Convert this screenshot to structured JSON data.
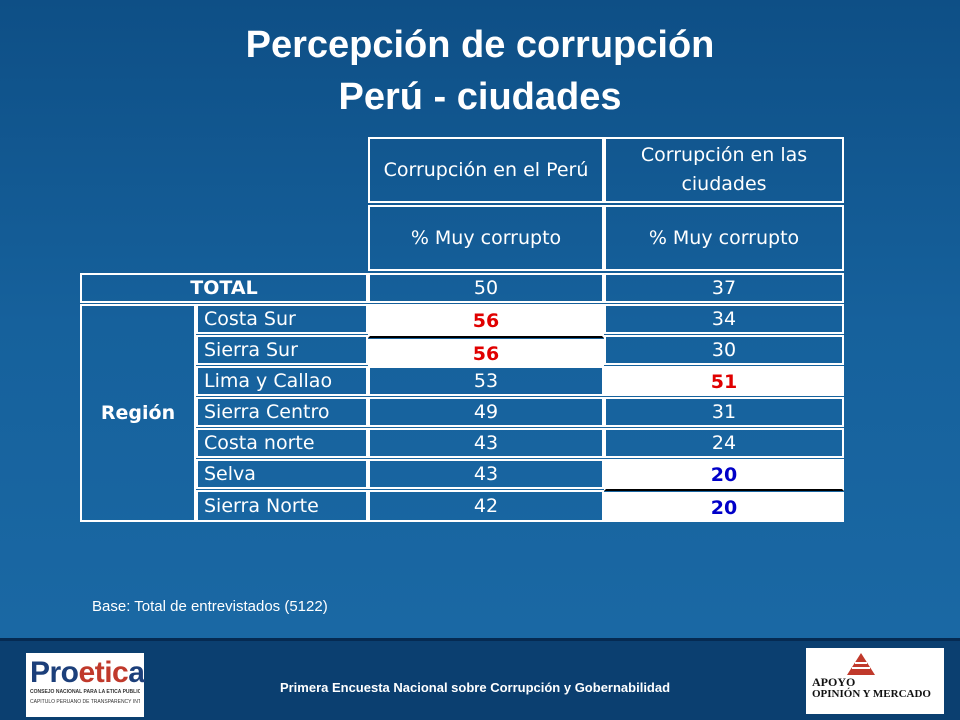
{
  "title": {
    "line1": "Percepción de corrupción",
    "line2": "Perú - ciudades"
  },
  "table": {
    "col_headers": [
      "Corrupción en el Perú",
      "Corrupción en las ciudades"
    ],
    "sub_headers": [
      "% Muy corrupto",
      "% Muy corrupto"
    ],
    "total": {
      "label": "TOTAL",
      "peru": "50",
      "ciudades": "37"
    },
    "group_label": "Región",
    "rows": [
      {
        "label": "Costa Sur",
        "peru": "56",
        "ciudades": "34"
      },
      {
        "label": "Sierra Sur",
        "peru": "56",
        "ciudades": "30"
      },
      {
        "label": "Lima y Callao",
        "peru": "53",
        "ciudades": "51"
      },
      {
        "label": "Sierra Centro",
        "peru": "49",
        "ciudades": "31"
      },
      {
        "label": "Costa norte",
        "peru": "43",
        "ciudades": "24"
      },
      {
        "label": "Selva",
        "peru": "43",
        "ciudades": "20"
      },
      {
        "label": "Sierra Norte",
        "peru": "42",
        "ciudades": "20"
      }
    ],
    "highlight_colors": {
      "high": "#e00000",
      "low": "#0000c8"
    }
  },
  "base_note": "Base: Total de entrevistados (5122)",
  "footer": {
    "text": "Primera Encuesta Nacional sobre Corrupción y Gobernabilidad",
    "logo_left": {
      "name_a": "Pro",
      "name_b": "etic",
      "name_c": "a",
      "line1": "CONSEJO NACIONAL PARA LA ÉTICA PÚBLICA",
      "line2": "CAPÍTULO PERUANO DE TRANSPARENCY INTERNATIONAL"
    },
    "logo_right": {
      "line1": "APOYO",
      "line2": "OPINIÓN Y MERCADO"
    }
  }
}
